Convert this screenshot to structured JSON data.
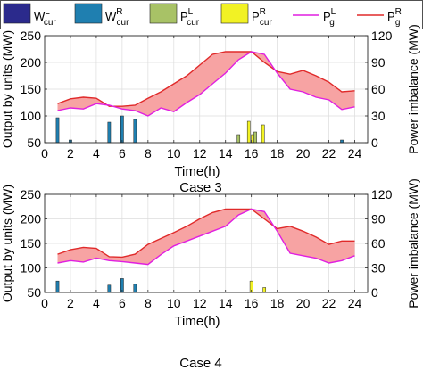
{
  "legend": {
    "items": [
      {
        "base": "W",
        "sup": "L",
        "sub": "cur",
        "type": "bar",
        "color": "#2b2a8c"
      },
      {
        "base": "W",
        "sup": "R",
        "sub": "cur",
        "type": "bar",
        "color": "#1f7fb0"
      },
      {
        "base": "P",
        "sup": "L",
        "sub": "cur",
        "type": "bar",
        "color": "#a8c266"
      },
      {
        "base": "P",
        "sup": "R",
        "sub": "cur",
        "type": "bar",
        "color": "#f2f224"
      },
      {
        "base": "P",
        "sup": "L",
        "sub": "g",
        "type": "line",
        "color": "#e01fe0"
      },
      {
        "base": "P",
        "sup": "R",
        "sub": "g",
        "type": "line",
        "color": "#e02a2a"
      }
    ]
  },
  "colors": {
    "band_fill": "#f7a3a3",
    "upper_line": "#e02a2a",
    "lower_line": "#e01fe0",
    "w_r_bar": "#1f7fb0",
    "p_r_bar": "#f2f224",
    "p_l_bar": "#a8c266"
  },
  "chart_data": [
    {
      "type": "line",
      "title": "Case 3",
      "xlabel": "Time(h)",
      "ylabel": "Output by units (MW)",
      "y2label": "Power imbalance (MW)",
      "xlim": [
        0,
        25
      ],
      "ylim": [
        50,
        250
      ],
      "y2lim": [
        0,
        120
      ],
      "xticks": [
        "0",
        "2",
        "4",
        "6",
        "8",
        "10",
        "12",
        "14",
        "16",
        "18",
        "20",
        "22",
        "24"
      ],
      "yticks": [
        "50",
        "100",
        "150",
        "200",
        "250"
      ],
      "y2ticks": [
        "0",
        "30",
        "60",
        "90",
        "120"
      ],
      "grid": true,
      "x": [
        1,
        2,
        3,
        4,
        5,
        6,
        7,
        8,
        9,
        10,
        11,
        12,
        13,
        14,
        15,
        16,
        17,
        18,
        19,
        20,
        21,
        22,
        23,
        24
      ],
      "series": [
        {
          "name": "P_g^R",
          "values": [
            123,
            132,
            135,
            133,
            118,
            118,
            120,
            133,
            145,
            160,
            175,
            195,
            215,
            220,
            220,
            220,
            200,
            183,
            178,
            185,
            175,
            163,
            145,
            147
          ]
        },
        {
          "name": "P_g^L",
          "values": [
            110,
            115,
            113,
            123,
            120,
            113,
            110,
            100,
            115,
            108,
            125,
            140,
            160,
            180,
            205,
            220,
            215,
            180,
            150,
            145,
            135,
            130,
            112,
            117
          ]
        }
      ],
      "bars": [
        {
          "name": "W_cur^R",
          "x": [
            1,
            2,
            5,
            6,
            7,
            23
          ],
          "values": [
            28,
            3,
            23,
            30,
            26,
            3
          ]
        },
        {
          "name": "P_cur^R",
          "x": [
            15.8,
            16.1,
            16.9
          ],
          "values": [
            24,
            9,
            20
          ]
        },
        {
          "name": "P_cur^L",
          "x": [
            15,
            16.3
          ],
          "values": [
            9,
            12
          ]
        }
      ]
    },
    {
      "type": "line",
      "title": "Case 4",
      "xlabel": "Time(h)",
      "ylabel": "Output by units (MW)",
      "y2label": "Power imbalance (MW)",
      "xlim": [
        0,
        25
      ],
      "ylim": [
        50,
        250
      ],
      "y2lim": [
        0,
        120
      ],
      "xticks": [
        "0",
        "2",
        "4",
        "6",
        "8",
        "10",
        "12",
        "14",
        "16",
        "18",
        "20",
        "22",
        "24"
      ],
      "yticks": [
        "50",
        "100",
        "150",
        "200",
        "250"
      ],
      "y2ticks": [
        "0",
        "30",
        "60",
        "90",
        "120"
      ],
      "grid": true,
      "x": [
        1,
        2,
        3,
        4,
        5,
        6,
        7,
        8,
        9,
        10,
        11,
        12,
        13,
        14,
        15,
        16,
        17,
        18,
        19,
        20,
        21,
        22,
        23,
        24
      ],
      "series": [
        {
          "name": "P_g^R",
          "values": [
            128,
            137,
            142,
            140,
            123,
            122,
            128,
            148,
            160,
            172,
            185,
            200,
            213,
            220,
            220,
            220,
            200,
            180,
            185,
            175,
            163,
            148,
            155,
            155
          ]
        },
        {
          "name": "P_g^L",
          "values": [
            110,
            115,
            112,
            120,
            115,
            113,
            110,
            107,
            127,
            145,
            155,
            165,
            175,
            185,
            208,
            220,
            215,
            175,
            130,
            125,
            120,
            110,
            115,
            125
          ]
        }
      ],
      "bars": [
        {
          "name": "W_cur^R",
          "x": [
            1,
            5,
            6,
            7
          ],
          "values": [
            14,
            9,
            17,
            10
          ],
          "note": ""
        },
        {
          "name": "P_cur^R",
          "x": [
            16,
            17
          ],
          "values": [
            14,
            6
          ]
        }
      ]
    }
  ]
}
